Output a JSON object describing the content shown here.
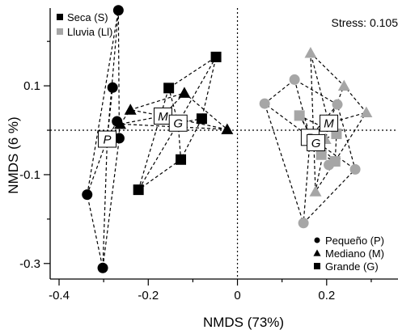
{
  "chart_data": {
    "type": "scatter",
    "title": "",
    "xlabel": "NMDS (73%)",
    "ylabel": "NMDS (6 %)",
    "xlim": [
      -0.42,
      0.36
    ],
    "ylim": [
      -0.335,
      0.275
    ],
    "xticks": [
      -0.4,
      -0.2,
      0,
      0.2
    ],
    "xtick_labels": [
      "-0.4",
      "-0.2",
      "0",
      "0.2"
    ],
    "yticks": [
      0.1,
      -0.1,
      -0.3
    ],
    "ytick_labels": [
      "0.1",
      "-0.1",
      "-0.3"
    ],
    "reference_lines": {
      "x": 0,
      "y": 0,
      "style": "dotted"
    },
    "stress_label": "Stress: 0.105",
    "season_legend": [
      {
        "key": "seca",
        "label": "Seca (S)",
        "color": "#000000"
      },
      {
        "key": "lluvia",
        "label": "Lluvia (Ll)",
        "color": "#a6a6a6"
      }
    ],
    "size_legend": [
      {
        "key": "pequeno",
        "label": "Pequeño (P)",
        "marker": "circle"
      },
      {
        "key": "mediano",
        "label": "Mediano (M)",
        "marker": "triangle"
      },
      {
        "key": "grande",
        "label": "Grande (G)",
        "marker": "square"
      }
    ],
    "groups": [
      {
        "season": "seca",
        "size": "pequeno",
        "marker": "circle",
        "color": "#000000",
        "centroid": {
          "label": "P",
          "x": -0.292,
          "y": -0.02
        },
        "points": [
          {
            "x": -0.267,
            "y": 0.27
          },
          {
            "x": -0.28,
            "y": 0.096
          },
          {
            "x": -0.27,
            "y": 0.02
          },
          {
            "x": -0.265,
            "y": -0.018
          },
          {
            "x": -0.337,
            "y": -0.145
          },
          {
            "x": -0.302,
            "y": -0.31
          }
        ]
      },
      {
        "season": "seca",
        "size": "mediano",
        "marker": "triangle",
        "color": "#000000",
        "centroid": {
          "label": "M",
          "x": -0.167,
          "y": 0.032
        },
        "points": [
          {
            "x": -0.24,
            "y": 0.046
          },
          {
            "x": -0.263,
            "y": 0.014
          },
          {
            "x": -0.119,
            "y": 0.084
          },
          {
            "x": -0.023,
            "y": 0.002
          }
        ]
      },
      {
        "season": "seca",
        "size": "grande",
        "marker": "square",
        "color": "#000000",
        "centroid": {
          "label": "G",
          "x": -0.133,
          "y": 0.016
        },
        "points": [
          {
            "x": -0.048,
            "y": 0.165
          },
          {
            "x": -0.154,
            "y": 0.095
          },
          {
            "x": -0.08,
            "y": 0.026
          },
          {
            "x": -0.127,
            "y": -0.066
          },
          {
            "x": -0.222,
            "y": -0.134
          }
        ]
      },
      {
        "season": "lluvia",
        "size": "pequeno",
        "marker": "circle",
        "color": "#a6a6a6",
        "centroid": {
          "label": "P",
          "x": 0.163,
          "y": -0.016
        },
        "points": [
          {
            "x": 0.128,
            "y": 0.114
          },
          {
            "x": 0.224,
            "y": 0.058
          },
          {
            "x": 0.061,
            "y": 0.06
          },
          {
            "x": 0.264,
            "y": -0.088
          },
          {
            "x": 0.205,
            "y": -0.078
          },
          {
            "x": 0.148,
            "y": -0.209
          }
        ]
      },
      {
        "season": "lluvia",
        "size": "mediano",
        "marker": "triangle",
        "color": "#a6a6a6",
        "centroid": {
          "label": "M",
          "x": 0.205,
          "y": 0.016
        },
        "points": [
          {
            "x": 0.164,
            "y": 0.174
          },
          {
            "x": 0.239,
            "y": 0.1
          },
          {
            "x": 0.289,
            "y": 0.04
          },
          {
            "x": 0.197,
            "y": -0.02
          },
          {
            "x": 0.175,
            "y": -0.138
          }
        ]
      },
      {
        "season": "lluvia",
        "size": "grande",
        "marker": "square",
        "color": "#a6a6a6",
        "centroid": {
          "label": "G",
          "x": 0.176,
          "y": -0.028
        },
        "points": [
          {
            "x": 0.139,
            "y": 0.033
          },
          {
            "x": 0.222,
            "y": -0.008
          },
          {
            "x": 0.219,
            "y": -0.07
          },
          {
            "x": 0.188,
            "y": -0.055
          }
        ]
      }
    ]
  }
}
